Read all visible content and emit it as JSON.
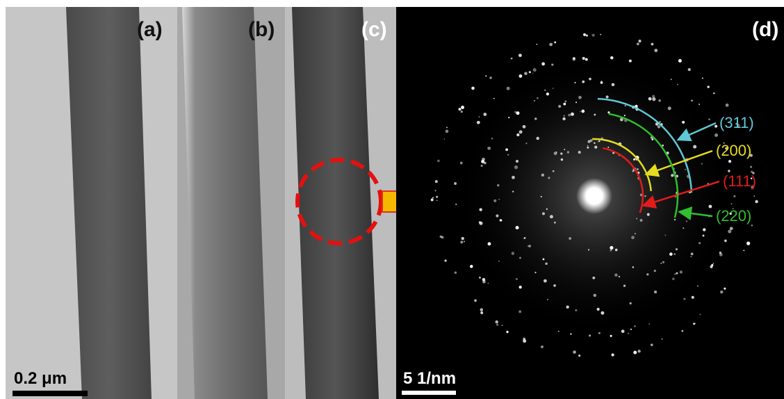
{
  "panels": {
    "a": {
      "label": "(a)"
    },
    "b": {
      "label": "(b)"
    },
    "c": {
      "label": "(c)"
    },
    "d": {
      "label": "(d)"
    }
  },
  "scale_bars": {
    "real_space": "0.2 μm",
    "reciprocal_space": "5 1/nm"
  },
  "rings": [
    {
      "label": "(311)",
      "color": "#5fc9d6"
    },
    {
      "label": "(200)",
      "color": "#e6dc1e"
    },
    {
      "label": "(111)",
      "color": "#e21b1b"
    },
    {
      "label": "(220)",
      "color": "#2fbf2f"
    }
  ]
}
